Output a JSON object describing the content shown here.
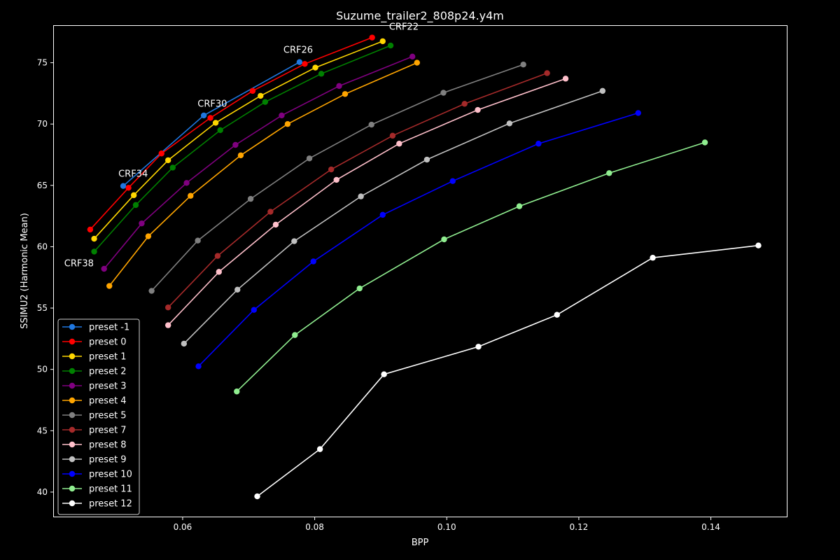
{
  "chart_data": {
    "type": "line",
    "title": "Suzume_trailer2_808p24.y4m",
    "xlabel": "BPP",
    "ylabel": "SSIMU2 (Harmonic Mean)",
    "xlim": [
      0.0405,
      0.1515
    ],
    "ylim": [
      38.0,
      78.0
    ],
    "x_ticks": [
      0.06,
      0.08,
      0.1,
      0.12,
      0.14
    ],
    "x_tick_labels": [
      "0.06",
      "0.08",
      "0.10",
      "0.12",
      "0.14"
    ],
    "y_ticks": [
      40,
      45,
      50,
      55,
      60,
      65,
      70,
      75
    ],
    "y_tick_labels": [
      "40",
      "45",
      "50",
      "55",
      "60",
      "65",
      "70",
      "75"
    ],
    "grid": false,
    "legend_position": "lower-left",
    "annotations": [
      {
        "text": "CRF22",
        "x": 0.0935,
        "y": 77.7
      },
      {
        "text": "CRF26",
        "x": 0.0775,
        "y": 75.8
      },
      {
        "text": "CRF30",
        "x": 0.0645,
        "y": 71.4
      },
      {
        "text": "CRF34",
        "x": 0.0525,
        "y": 65.7
      },
      {
        "text": "CRF38",
        "x": 0.0443,
        "y": 58.4
      }
    ],
    "series": [
      {
        "name": "preset -1",
        "color": "#1f77e0",
        "x": [
          0.051,
          0.0632,
          0.0777
        ],
        "y": [
          64.95,
          70.7,
          75.05
        ]
      },
      {
        "name": "preset 0",
        "color": "#ff0000",
        "x": [
          0.046,
          0.0518,
          0.0568,
          0.0642,
          0.0706,
          0.0785,
          0.0887
        ],
        "y": [
          61.4,
          64.8,
          67.6,
          70.5,
          72.7,
          74.9,
          77.05
        ]
      },
      {
        "name": "preset 1",
        "color": "#ffd700",
        "x": [
          0.0466,
          0.0526,
          0.0578,
          0.065,
          0.0718,
          0.0801,
          0.0903
        ],
        "y": [
          60.65,
          64.2,
          67.05,
          70.1,
          72.3,
          74.6,
          76.75
        ]
      },
      {
        "name": "preset 2",
        "color": "#008000",
        "x": [
          0.0466,
          0.0529,
          0.0585,
          0.0657,
          0.0725,
          0.081,
          0.0915
        ],
        "y": [
          59.6,
          63.4,
          66.45,
          69.5,
          71.8,
          74.1,
          76.4
        ]
      },
      {
        "name": "preset 3",
        "color": "#800080",
        "x": [
          0.0481,
          0.0538,
          0.0606,
          0.068,
          0.075,
          0.0837,
          0.0948
        ],
        "y": [
          58.2,
          61.9,
          65.2,
          68.3,
          70.7,
          73.1,
          75.5
        ]
      },
      {
        "name": "preset 4",
        "color": "#ffa500",
        "x": [
          0.0489,
          0.0548,
          0.0612,
          0.0688,
          0.0759,
          0.0846,
          0.0955
        ],
        "y": [
          56.8,
          60.85,
          64.15,
          67.45,
          70.0,
          72.45,
          75.0
        ]
      },
      {
        "name": "preset 5",
        "color": "#808080",
        "x": [
          0.0553,
          0.0623,
          0.0703,
          0.0792,
          0.0886,
          0.0995,
          0.1116
        ],
        "y": [
          56.4,
          60.5,
          63.9,
          67.2,
          69.95,
          72.55,
          74.85
        ]
      },
      {
        "name": "preset 7",
        "color": "#a52a2a",
        "x": [
          0.0578,
          0.0653,
          0.0733,
          0.0825,
          0.0918,
          0.1027,
          0.1152
        ],
        "y": [
          55.05,
          59.25,
          62.85,
          66.3,
          69.05,
          71.65,
          74.15
        ]
      },
      {
        "name": "preset 8",
        "color": "#ffc0cb",
        "x": [
          0.0578,
          0.0655,
          0.0741,
          0.0833,
          0.0928,
          0.1047,
          0.118
        ],
        "y": [
          53.6,
          57.95,
          61.8,
          65.45,
          68.4,
          71.15,
          73.7
        ]
      },
      {
        "name": "preset 9",
        "color": "#c0c0c0",
        "x": [
          0.0602,
          0.0683,
          0.0769,
          0.087,
          0.097,
          0.1095,
          0.1236
        ],
        "y": [
          52.1,
          56.5,
          60.45,
          64.1,
          67.1,
          70.05,
          72.7
        ]
      },
      {
        "name": "preset 10",
        "color": "#0000ff",
        "x": [
          0.0624,
          0.0708,
          0.0798,
          0.0903,
          0.1009,
          0.1139,
          0.129
        ],
        "y": [
          50.25,
          54.85,
          58.8,
          62.6,
          65.35,
          68.4,
          70.9
        ]
      },
      {
        "name": "preset 11",
        "color": "#90ee90",
        "x": [
          0.0682,
          0.077,
          0.0868,
          0.0996,
          0.111,
          0.1246,
          0.1391
        ],
        "y": [
          48.2,
          52.8,
          56.6,
          60.6,
          63.3,
          66.0,
          68.5
        ]
      },
      {
        "name": "preset 12",
        "color": "#ffffff",
        "x": [
          0.0713,
          0.0808,
          0.0905,
          0.1048,
          0.1167,
          0.1312,
          0.1472
        ],
        "y": [
          39.65,
          43.5,
          49.6,
          51.85,
          54.45,
          59.1,
          60.1
        ]
      }
    ]
  }
}
